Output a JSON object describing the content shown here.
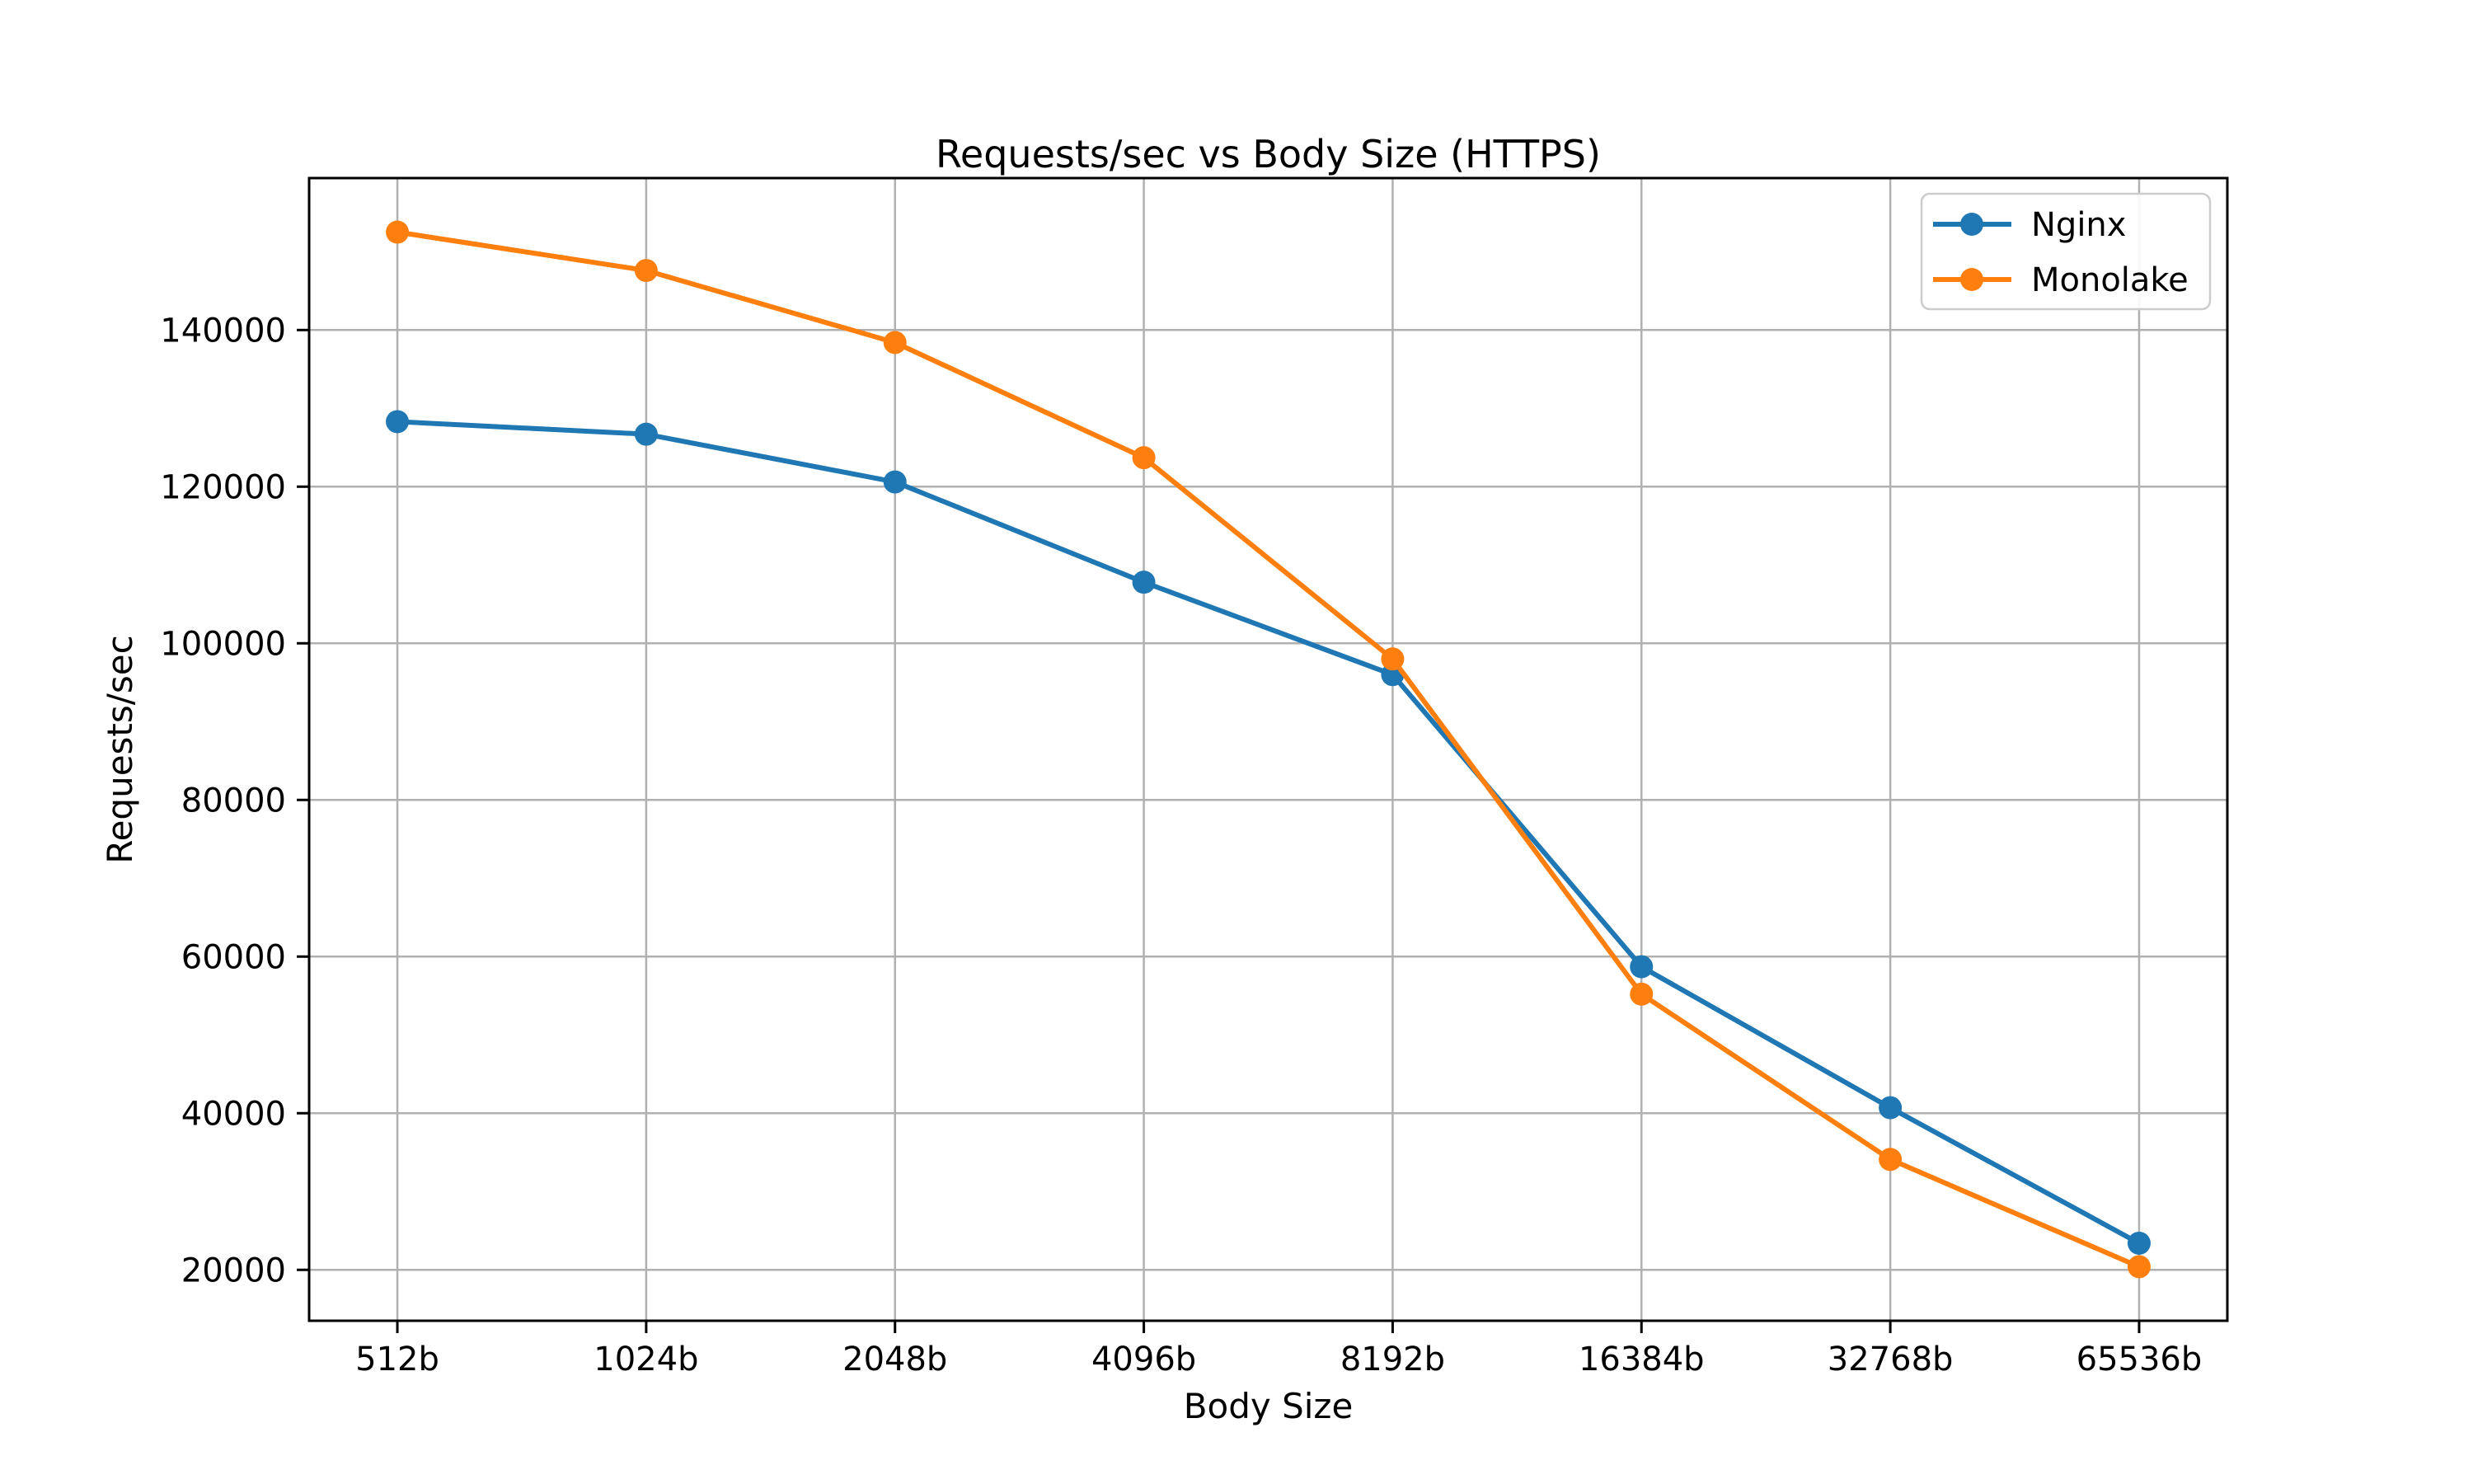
{
  "chart_data": {
    "type": "line",
    "title": "Requests/sec vs Body Size (HTTPS)",
    "xlabel": "Body Size",
    "ylabel": "Requests/sec",
    "categories": [
      "512b",
      "1024b",
      "2048b",
      "4096b",
      "8192b",
      "16384b",
      "32768b",
      "65536b"
    ],
    "series": [
      {
        "name": "Nginx",
        "color": "#1f77b4",
        "values": [
          128300,
          126700,
          120600,
          107800,
          96000,
          58700,
          40700,
          23400
        ]
      },
      {
        "name": "Monolake",
        "color": "#ff7f0e",
        "values": [
          152500,
          147600,
          138400,
          123700,
          98000,
          55200,
          34100,
          20400
        ]
      }
    ],
    "yticks": [
      20000,
      40000,
      60000,
      80000,
      100000,
      120000,
      140000
    ],
    "yticklabels": [
      "20000",
      "40000",
      "60000",
      "80000",
      "100000",
      "120000",
      "140000"
    ],
    "ylim": [
      13500,
      159400
    ],
    "grid": true,
    "legend_position": "upper right",
    "colors": {
      "grid": "#b0b0b0",
      "spine": "#000000",
      "background": "#ffffff",
      "legend_border": "#cccccc"
    }
  }
}
